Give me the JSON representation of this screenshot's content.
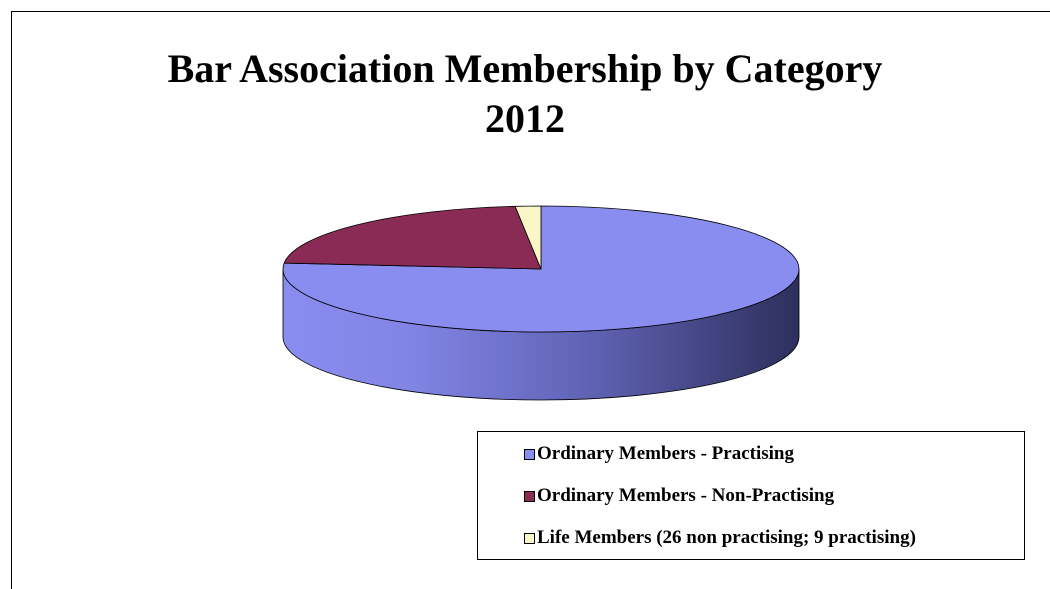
{
  "chart_data": {
    "type": "pie",
    "title": "Bar Association Membership by Category",
    "subtitle": "2012",
    "style": "3d",
    "legend_position": "bottom-right",
    "series": [
      {
        "name": "Ordinary Members - Practising",
        "value": 76.5,
        "color": "#8a8df0"
      },
      {
        "name": "Ordinary Members - Non-Practising",
        "value": 21.9,
        "color": "#8a2b55"
      },
      {
        "name": "Life Members (26 non practising; 9 practising)",
        "value": 1.6,
        "color": "#fbf6c8"
      }
    ]
  }
}
